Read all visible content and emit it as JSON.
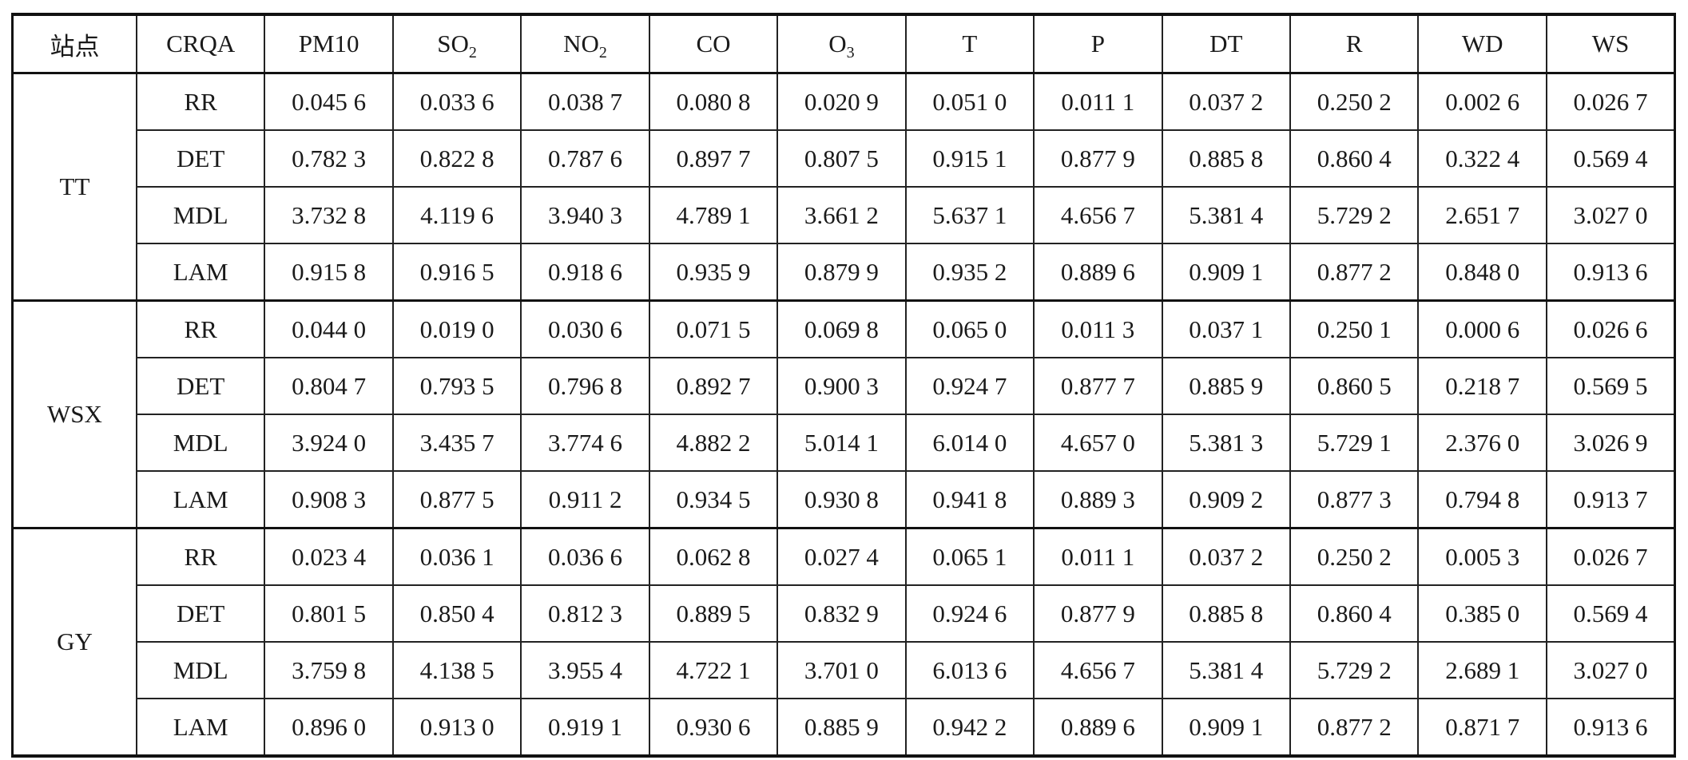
{
  "table": {
    "headers": {
      "site": "站点",
      "metric": "CRQA",
      "columns": [
        {
          "base": "PM10",
          "sub": ""
        },
        {
          "base": "SO",
          "sub": "2"
        },
        {
          "base": "NO",
          "sub": "2"
        },
        {
          "base": "CO",
          "sub": ""
        },
        {
          "base": "O",
          "sub": "3"
        },
        {
          "base": "T",
          "sub": ""
        },
        {
          "base": "P",
          "sub": ""
        },
        {
          "base": "DT",
          "sub": ""
        },
        {
          "base": "R",
          "sub": ""
        },
        {
          "base": "WD",
          "sub": ""
        },
        {
          "base": "WS",
          "sub": ""
        }
      ]
    },
    "groups": [
      {
        "site": "TT",
        "rows": [
          {
            "metric": "RR",
            "values": [
              "0.045 6",
              "0.033 6",
              "0.038 7",
              "0.080 8",
              "0.020 9",
              "0.051 0",
              "0.011 1",
              "0.037 2",
              "0.250 2",
              "0.002 6",
              "0.026 7"
            ]
          },
          {
            "metric": "DET",
            "values": [
              "0.782 3",
              "0.822 8",
              "0.787 6",
              "0.897 7",
              "0.807 5",
              "0.915 1",
              "0.877 9",
              "0.885 8",
              "0.860 4",
              "0.322 4",
              "0.569 4"
            ]
          },
          {
            "metric": "MDL",
            "values": [
              "3.732 8",
              "4.119 6",
              "3.940 3",
              "4.789 1",
              "3.661 2",
              "5.637 1",
              "4.656 7",
              "5.381 4",
              "5.729 2",
              "2.651 7",
              "3.027 0"
            ]
          },
          {
            "metric": "LAM",
            "values": [
              "0.915 8",
              "0.916 5",
              "0.918 6",
              "0.935 9",
              "0.879 9",
              "0.935 2",
              "0.889 6",
              "0.909 1",
              "0.877 2",
              "0.848 0",
              "0.913 6"
            ]
          }
        ]
      },
      {
        "site": "WSX",
        "rows": [
          {
            "metric": "RR",
            "values": [
              "0.044 0",
              "0.019 0",
              "0.030 6",
              "0.071 5",
              "0.069 8",
              "0.065 0",
              "0.011 3",
              "0.037 1",
              "0.250 1",
              "0.000 6",
              "0.026 6"
            ]
          },
          {
            "metric": "DET",
            "values": [
              "0.804 7",
              "0.793 5",
              "0.796 8",
              "0.892 7",
              "0.900 3",
              "0.924 7",
              "0.877 7",
              "0.885 9",
              "0.860 5",
              "0.218 7",
              "0.569 5"
            ]
          },
          {
            "metric": "MDL",
            "values": [
              "3.924 0",
              "3.435 7",
              "3.774 6",
              "4.882 2",
              "5.014 1",
              "6.014 0",
              "4.657 0",
              "5.381 3",
              "5.729 1",
              "2.376 0",
              "3.026 9"
            ]
          },
          {
            "metric": "LAM",
            "values": [
              "0.908 3",
              "0.877 5",
              "0.911 2",
              "0.934 5",
              "0.930 8",
              "0.941 8",
              "0.889 3",
              "0.909 2",
              "0.877 3",
              "0.794 8",
              "0.913 7"
            ]
          }
        ]
      },
      {
        "site": "GY",
        "rows": [
          {
            "metric": "RR",
            "values": [
              "0.023 4",
              "0.036 1",
              "0.036 6",
              "0.062 8",
              "0.027 4",
              "0.065 1",
              "0.011 1",
              "0.037 2",
              "0.250 2",
              "0.005 3",
              "0.026 7"
            ]
          },
          {
            "metric": "DET",
            "values": [
              "0.801 5",
              "0.850 4",
              "0.812 3",
              "0.889 5",
              "0.832 9",
              "0.924 6",
              "0.877 9",
              "0.885 8",
              "0.860 4",
              "0.385 0",
              "0.569 4"
            ]
          },
          {
            "metric": "MDL",
            "values": [
              "3.759 8",
              "4.138 5",
              "3.955 4",
              "4.722 1",
              "3.701 0",
              "6.013 6",
              "4.656 7",
              "5.381 4",
              "5.729 2",
              "2.689 1",
              "3.027 0"
            ]
          },
          {
            "metric": "LAM",
            "values": [
              "0.896 0",
              "0.913 0",
              "0.919 1",
              "0.930 6",
              "0.885 9",
              "0.942 2",
              "0.889 6",
              "0.909 1",
              "0.877 2",
              "0.871 7",
              "0.913 6"
            ]
          }
        ]
      }
    ]
  }
}
